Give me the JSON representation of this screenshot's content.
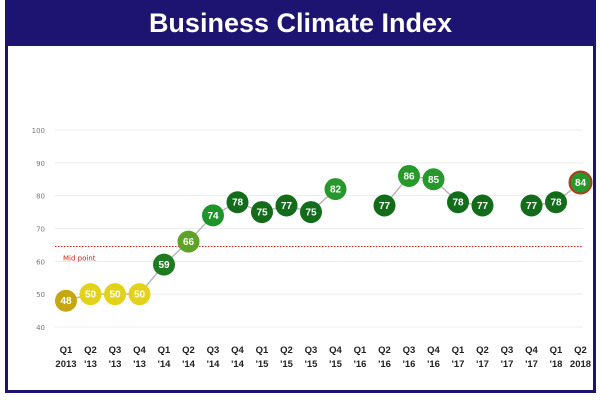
{
  "chart_data": {
    "type": "line",
    "title": "Business Climate Index",
    "categories": [
      [
        "Q1",
        "2013"
      ],
      [
        "Q2",
        "'13"
      ],
      [
        "Q3",
        "'13"
      ],
      [
        "Q4",
        "'13"
      ],
      [
        "Q1",
        "'14"
      ],
      [
        "Q2",
        "'14"
      ],
      [
        "Q3",
        "'14"
      ],
      [
        "Q4",
        "'14"
      ],
      [
        "Q1",
        "'15"
      ],
      [
        "Q2",
        "'15"
      ],
      [
        "Q3",
        "'15"
      ],
      [
        "Q4",
        "'15"
      ],
      [
        "Q1",
        "'16"
      ],
      [
        "Q2",
        "'16"
      ],
      [
        "Q3",
        "'16"
      ],
      [
        "Q4",
        "'16"
      ],
      [
        "Q1",
        "'17"
      ],
      [
        "Q2",
        "'17"
      ],
      [
        "Q3",
        "'17"
      ],
      [
        "Q4",
        "'17"
      ],
      [
        "Q1",
        "'18"
      ],
      [
        "Q2",
        "2018"
      ]
    ],
    "values": [
      48,
      50,
      50,
      50,
      59,
      66,
      74,
      78,
      75,
      77,
      75,
      82,
      null,
      77,
      86,
      85,
      78,
      77,
      null,
      77,
      78,
      84
    ],
    "point_colors": [
      "#c6a612",
      "#e2d21c",
      "#e2d21c",
      "#e2d21c",
      "#1f7a22",
      "#5ea326",
      "#1e952a",
      "#126c1a",
      "#126c1a",
      "#126c1a",
      "#126c1a",
      "#26982c",
      null,
      "#126c1a",
      "#26982c",
      "#26982c",
      "#126c1a",
      "#126c1a",
      null,
      "#126c1a",
      "#126c1a",
      "#26982c"
    ],
    "highlight_last_border": "#b03a1a",
    "ylim": [
      40,
      100
    ],
    "yticks": [
      40,
      50,
      60,
      70,
      80,
      90,
      100
    ],
    "grid": true,
    "reference_line": {
      "value": 64.5,
      "label": "Mid point",
      "color": "#d0201a"
    },
    "line_color": "#b8b8b8",
    "xlabel": "",
    "ylabel": ""
  }
}
